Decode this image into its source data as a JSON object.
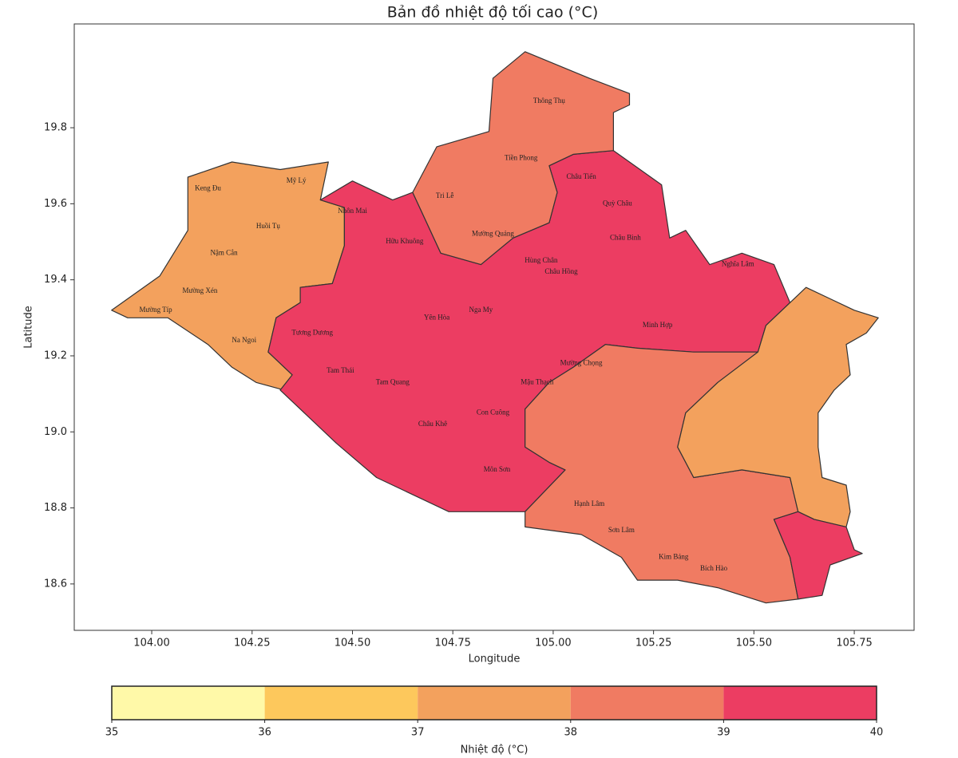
{
  "chart_data": {
    "type": "choropleth",
    "title": "Bản đồ nhiệt độ tối cao (°C)",
    "xlabel": "Longitude",
    "ylabel": "Latitude",
    "xlim": [
      103.807,
      105.899
    ],
    "ylim": [
      18.478,
      20.073
    ],
    "xticks": [
      {
        "value": 104,
        "label": "104.00"
      },
      {
        "value": 104.25,
        "label": "104.25"
      },
      {
        "value": 104.5,
        "label": "104.50"
      },
      {
        "value": 104.75,
        "label": "104.75"
      },
      {
        "value": 105,
        "label": "105.00"
      },
      {
        "value": 105.25,
        "label": "105.25"
      },
      {
        "value": 105.5,
        "label": "105.50"
      },
      {
        "value": 105.75,
        "label": "105.75"
      }
    ],
    "yticks": [
      18.6,
      18.8,
      {
        "value": 19,
        "label": "19.0"
      },
      19.2,
      19.4,
      19.6,
      19.8
    ],
    "zones": [
      {
        "value": 37.5,
        "boundary": [
          [
            103.9,
            19.32
          ],
          [
            104.02,
            19.41
          ],
          [
            104.09,
            19.53
          ],
          [
            104.09,
            19.67
          ],
          [
            104.2,
            19.71
          ],
          [
            104.32,
            19.69
          ],
          [
            104.44,
            19.71
          ],
          [
            104.42,
            19.61
          ],
          [
            104.48,
            19.59
          ],
          [
            104.48,
            19.49
          ],
          [
            104.45,
            19.39
          ],
          [
            104.37,
            19.38
          ],
          [
            104.37,
            19.34
          ],
          [
            104.31,
            19.3
          ],
          [
            104.29,
            19.21
          ],
          [
            104.35,
            19.15
          ],
          [
            104.33,
            19.11
          ],
          [
            104.26,
            19.13
          ],
          [
            104.2,
            19.17
          ],
          [
            104.14,
            19.23
          ],
          [
            104.04,
            19.3
          ],
          [
            103.94,
            19.3
          ]
        ]
      },
      {
        "value": 39.5,
        "boundary": [
          [
            104.42,
            19.61
          ],
          [
            104.5,
            19.66
          ],
          [
            104.6,
            19.61
          ],
          [
            104.65,
            19.63
          ],
          [
            104.72,
            19.47
          ],
          [
            104.82,
            19.44
          ],
          [
            104.9,
            19.51
          ],
          [
            104.99,
            19.55
          ],
          [
            105.01,
            19.63
          ],
          [
            104.99,
            19.7
          ],
          [
            105.05,
            19.73
          ],
          [
            105.15,
            19.74
          ],
          [
            105.27,
            19.65
          ],
          [
            105.29,
            19.51
          ],
          [
            105.33,
            19.53
          ],
          [
            105.39,
            19.44
          ],
          [
            105.47,
            19.47
          ],
          [
            105.55,
            19.44
          ],
          [
            105.59,
            19.34
          ],
          [
            105.53,
            19.28
          ],
          [
            105.51,
            19.21
          ],
          [
            105.35,
            19.21
          ],
          [
            105.21,
            19.22
          ],
          [
            105.13,
            19.23
          ],
          [
            105.05,
            19.17
          ],
          [
            104.99,
            19.13
          ],
          [
            104.93,
            19.06
          ],
          [
            104.93,
            18.96
          ],
          [
            104.99,
            18.92
          ],
          [
            105.03,
            18.9
          ],
          [
            104.93,
            18.79
          ],
          [
            104.74,
            18.79
          ],
          [
            104.56,
            18.88
          ],
          [
            104.46,
            18.97
          ],
          [
            104.36,
            19.07
          ],
          [
            104.32,
            19.11
          ],
          [
            104.35,
            19.15
          ],
          [
            104.29,
            19.21
          ],
          [
            104.31,
            19.3
          ],
          [
            104.37,
            19.34
          ],
          [
            104.37,
            19.38
          ],
          [
            104.45,
            19.39
          ],
          [
            104.48,
            19.49
          ],
          [
            104.48,
            19.59
          ]
        ]
      },
      {
        "value": 38.5,
        "boundary": [
          [
            104.65,
            19.63
          ],
          [
            104.71,
            19.75
          ],
          [
            104.84,
            19.79
          ],
          [
            104.85,
            19.93
          ],
          [
            104.93,
            20.0
          ],
          [
            105.09,
            19.93
          ],
          [
            105.19,
            19.89
          ],
          [
            105.19,
            19.86
          ],
          [
            105.15,
            19.84
          ],
          [
            105.15,
            19.74
          ],
          [
            105.05,
            19.73
          ],
          [
            104.99,
            19.7
          ],
          [
            105.01,
            19.63
          ],
          [
            104.99,
            19.55
          ],
          [
            104.9,
            19.51
          ],
          [
            104.82,
            19.44
          ],
          [
            104.72,
            19.47
          ]
        ]
      },
      {
        "value": 38.5,
        "boundary": [
          [
            104.93,
            18.96
          ],
          [
            104.93,
            19.06
          ],
          [
            104.99,
            19.13
          ],
          [
            105.05,
            19.17
          ],
          [
            105.13,
            19.23
          ],
          [
            105.21,
            19.22
          ],
          [
            105.35,
            19.21
          ],
          [
            105.51,
            19.21
          ],
          [
            105.41,
            19.13
          ],
          [
            105.33,
            19.05
          ],
          [
            105.31,
            18.96
          ],
          [
            105.35,
            18.88
          ],
          [
            105.47,
            18.9
          ],
          [
            105.59,
            18.88
          ],
          [
            105.61,
            18.79
          ],
          [
            105.55,
            18.77
          ],
          [
            105.59,
            18.67
          ],
          [
            105.61,
            18.56
          ],
          [
            105.53,
            18.55
          ],
          [
            105.41,
            18.59
          ],
          [
            105.31,
            18.61
          ],
          [
            105.21,
            18.61
          ],
          [
            105.17,
            18.67
          ],
          [
            105.07,
            18.73
          ],
          [
            104.93,
            18.75
          ],
          [
            104.93,
            18.79
          ],
          [
            105.03,
            18.9
          ],
          [
            104.99,
            18.92
          ]
        ]
      },
      {
        "value": 37.5,
        "boundary": [
          [
            105.51,
            19.21
          ],
          [
            105.53,
            19.28
          ],
          [
            105.59,
            19.34
          ],
          [
            105.63,
            19.38
          ],
          [
            105.69,
            19.35
          ],
          [
            105.75,
            19.32
          ],
          [
            105.81,
            19.3
          ],
          [
            105.78,
            19.26
          ],
          [
            105.73,
            19.23
          ],
          [
            105.74,
            19.15
          ],
          [
            105.7,
            19.11
          ],
          [
            105.66,
            19.05
          ],
          [
            105.66,
            18.96
          ],
          [
            105.67,
            18.88
          ],
          [
            105.73,
            18.86
          ],
          [
            105.74,
            18.79
          ],
          [
            105.73,
            18.75
          ],
          [
            105.65,
            18.77
          ],
          [
            105.61,
            18.79
          ],
          [
            105.59,
            18.88
          ],
          [
            105.47,
            18.9
          ],
          [
            105.35,
            18.88
          ],
          [
            105.31,
            18.96
          ],
          [
            105.33,
            19.05
          ],
          [
            105.41,
            19.13
          ]
        ]
      },
      {
        "value": 39.5,
        "boundary": [
          [
            105.61,
            18.79
          ],
          [
            105.65,
            18.77
          ],
          [
            105.73,
            18.75
          ],
          [
            105.75,
            18.69
          ],
          [
            105.77,
            18.68
          ],
          [
            105.69,
            18.65
          ],
          [
            105.67,
            18.57
          ],
          [
            105.61,
            18.56
          ],
          [
            105.59,
            18.67
          ],
          [
            105.55,
            18.77
          ]
        ]
      }
    ],
    "labels": [
      {
        "text": "Thông Thụ",
        "lon": 104.99,
        "lat": 19.87
      },
      {
        "text": "Tiền Phong",
        "lon": 104.92,
        "lat": 19.72
      },
      {
        "text": "Tri Lễ",
        "lon": 104.73,
        "lat": 19.62
      },
      {
        "text": "Châu Tiến",
        "lon": 105.07,
        "lat": 19.67
      },
      {
        "text": "Quỳ Châu",
        "lon": 105.16,
        "lat": 19.6
      },
      {
        "text": "Mường Quảng",
        "lon": 104.85,
        "lat": 19.52
      },
      {
        "text": "Hữu Khuông",
        "lon": 104.63,
        "lat": 19.5
      },
      {
        "text": "Nhôn Mai",
        "lon": 104.5,
        "lat": 19.58
      },
      {
        "text": "Keng Đu",
        "lon": 104.14,
        "lat": 19.64
      },
      {
        "text": "Mỹ Lý",
        "lon": 104.36,
        "lat": 19.66
      },
      {
        "text": "Huồi Tụ",
        "lon": 104.29,
        "lat": 19.54
      },
      {
        "text": "Nậm Cắn",
        "lon": 104.18,
        "lat": 19.47
      },
      {
        "text": "Mường Xén",
        "lon": 104.12,
        "lat": 19.37
      },
      {
        "text": "Mường Típ",
        "lon": 104.01,
        "lat": 19.32
      },
      {
        "text": "Na Ngoi",
        "lon": 104.23,
        "lat": 19.24
      },
      {
        "text": "Tương Dương",
        "lon": 104.4,
        "lat": 19.26
      },
      {
        "text": "Tam Thái",
        "lon": 104.47,
        "lat": 19.16
      },
      {
        "text": "Tam Quang",
        "lon": 104.6,
        "lat": 19.13
      },
      {
        "text": "Yên Hòa",
        "lon": 104.71,
        "lat": 19.3
      },
      {
        "text": "Nga My",
        "lon": 104.82,
        "lat": 19.32
      },
      {
        "text": "Châu Khê",
        "lon": 104.7,
        "lat": 19.02
      },
      {
        "text": "Môn Sơn",
        "lon": 104.86,
        "lat": 18.9
      },
      {
        "text": "Hạnh Lâm",
        "lon": 105.09,
        "lat": 18.81
      },
      {
        "text": "Sơn Lâm",
        "lon": 105.17,
        "lat": 18.74
      },
      {
        "text": "Kim Bảng",
        "lon": 105.3,
        "lat": 18.67
      },
      {
        "text": "Bích Hào",
        "lon": 105.4,
        "lat": 18.64
      },
      {
        "text": "Hùng Chân",
        "lon": 104.97,
        "lat": 19.45
      },
      {
        "text": "Châu Bình",
        "lon": 105.18,
        "lat": 19.51
      },
      {
        "text": "Minh Hợp",
        "lon": 105.26,
        "lat": 19.28
      },
      {
        "text": "Mường Chọng",
        "lon": 105.07,
        "lat": 19.18
      },
      {
        "text": "Con Cuông",
        "lon": 104.85,
        "lat": 19.05
      },
      {
        "text": "Mậu Thạch",
        "lon": 104.96,
        "lat": 19.13
      },
      {
        "text": "Nghĩa Lâm",
        "lon": 105.46,
        "lat": 19.44
      },
      {
        "text": "Châu Hồng",
        "lon": 105.02,
        "lat": 19.42
      }
    ],
    "colorbar": {
      "label": "Nhiệt độ (°C)",
      "bounds": [
        35,
        36,
        37,
        38,
        39,
        40
      ],
      "colors": [
        "#fff9a8",
        "#fdc85c",
        "#f3a15d",
        "#f07b62",
        "#ec3d62"
      ]
    }
  }
}
